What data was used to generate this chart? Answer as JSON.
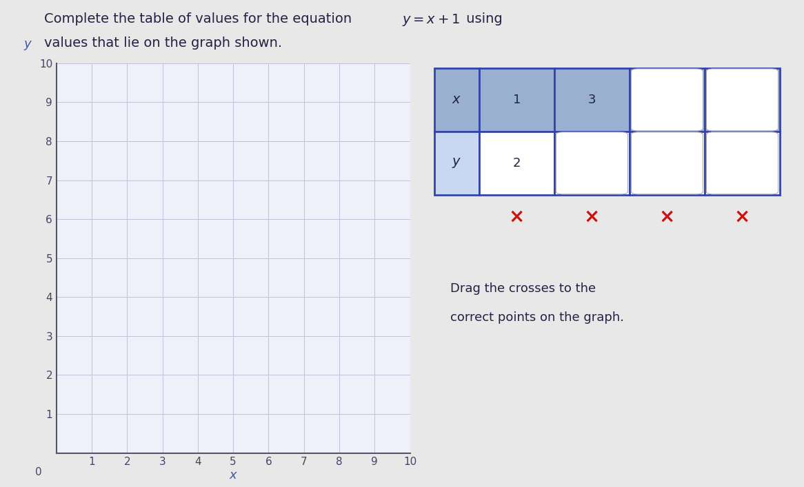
{
  "title_part1": "Complete the table of values for the equation ",
  "title_equation": "y = x + 1",
  "title_part2": " using",
  "title_line2": "values that lie on the graph shown.",
  "bg_color": "#e8e8e8",
  "graph_bg": "#f0f0fa",
  "grid_color": "#c0c0d8",
  "graph_border": "#555566",
  "table_header_bg": "#9ab0d0",
  "table_body_bg": "#c8d8f0",
  "table_white": "#ffffff",
  "table_border": "#3344aa",
  "cross_color": "#cc1111",
  "axis_color": "#4455aa",
  "tick_color": "#444466",
  "title_color": "#222244",
  "table_x_values": [
    "1",
    "3",
    "",
    ""
  ],
  "table_y_values": [
    "2",
    "",
    "",
    ""
  ],
  "drag_text_line1": "Drag the crosses to the",
  "drag_text_line2": "correct points on the graph."
}
